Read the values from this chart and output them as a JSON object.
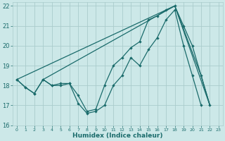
{
  "title": "",
  "xlabel": "Humidex (Indice chaleur)",
  "background_color": "#cce8e8",
  "grid_color": "#aacccc",
  "line_color": "#1a6b6b",
  "xlim": [
    -0.5,
    23.5
  ],
  "ylim": [
    16,
    22.2
  ],
  "xticks": [
    0,
    1,
    2,
    3,
    4,
    5,
    6,
    7,
    8,
    9,
    10,
    11,
    12,
    13,
    14,
    15,
    16,
    17,
    18,
    19,
    20,
    21,
    22,
    23
  ],
  "yticks": [
    16,
    17,
    18,
    19,
    20,
    21,
    22
  ],
  "series": [
    {
      "x": [
        0,
        1,
        2,
        3,
        4,
        5,
        6,
        7,
        8,
        9,
        10,
        11,
        12,
        13,
        14,
        15,
        16,
        17,
        18,
        19,
        20,
        21
      ],
      "y": [
        18.3,
        17.9,
        17.6,
        18.3,
        18.0,
        18.0,
        18.1,
        17.1,
        16.6,
        16.7,
        17.0,
        18.0,
        18.5,
        19.4,
        19.0,
        19.8,
        20.4,
        21.3,
        21.8,
        20.0,
        18.5,
        17.0
      ]
    },
    {
      "x": [
        0,
        1,
        2,
        3,
        4,
        5,
        6,
        7,
        8,
        9,
        10,
        11,
        12,
        13,
        14,
        15,
        16,
        17,
        18,
        19,
        20,
        21,
        22
      ],
      "y": [
        18.3,
        17.9,
        17.6,
        18.3,
        18.0,
        18.1,
        18.1,
        17.5,
        16.7,
        16.8,
        18.0,
        19.0,
        19.4,
        19.9,
        20.2,
        21.3,
        21.5,
        21.8,
        22.0,
        21.0,
        20.0,
        18.5,
        17.0
      ]
    },
    {
      "x": [
        0,
        18,
        21,
        22
      ],
      "y": [
        18.3,
        22.0,
        18.5,
        17.0
      ]
    },
    {
      "x": [
        3,
        18,
        22
      ],
      "y": [
        18.3,
        22.0,
        17.0
      ]
    }
  ]
}
